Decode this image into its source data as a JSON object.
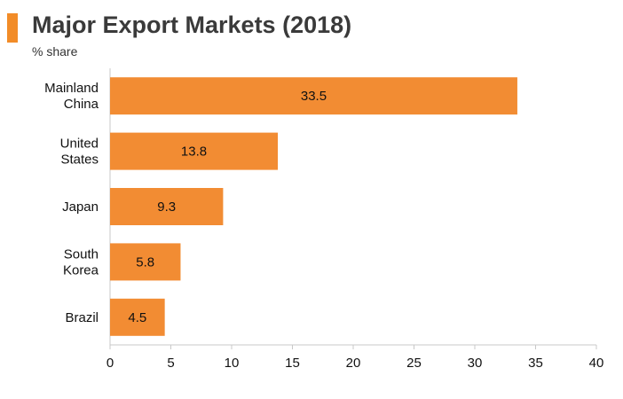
{
  "header": {
    "title": "Major Export Markets (2018)",
    "subtitle": "% share",
    "accent_color": "#f28c28"
  },
  "chart_data": {
    "type": "bar",
    "orientation": "horizontal",
    "title": "Major Export Markets (2018)",
    "subtitle": "% share",
    "categories": [
      [
        "Mainland",
        "China"
      ],
      [
        "United",
        "States"
      ],
      [
        "Japan"
      ],
      [
        "South",
        "Korea"
      ],
      [
        "Brazil"
      ]
    ],
    "values": [
      33.5,
      13.8,
      9.3,
      5.8,
      4.5
    ],
    "value_labels": [
      "33.5",
      "13.8",
      "9.3",
      "5.8",
      "4.5"
    ],
    "xlim": [
      0,
      40
    ],
    "xticks": [
      0,
      5,
      10,
      15,
      20,
      25,
      30,
      35,
      40
    ],
    "grid": false,
    "legend": "none",
    "bar_color": "#f28c33",
    "axis_color": "#c8c8c8"
  }
}
